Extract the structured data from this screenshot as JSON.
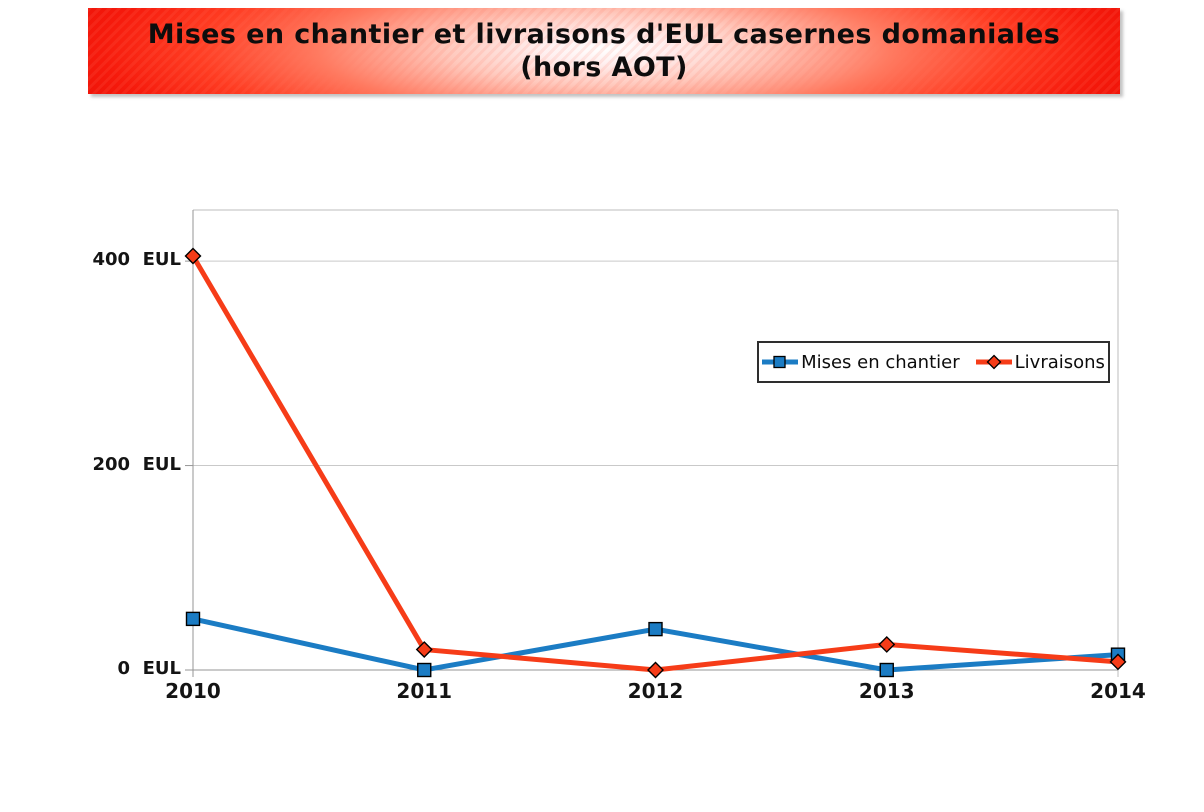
{
  "banner": {
    "title": "Mises en chantier et livraisons d'EUL casernes domaniales",
    "subtitle": "(hors AOT)"
  },
  "colors": {
    "banner_red": "#ee1408",
    "series_blue": "#1b7cc4",
    "series_red": "#f63c18",
    "gridline": "#c9c9c9",
    "axis": "#969696",
    "plot_border": "#bdbdbd",
    "tick_label": "#141414",
    "legend_border": "#2e2e2e",
    "marker_outline": "#000000"
  },
  "chart_data": {
    "type": "line",
    "title": "Mises en chantier et livraisons d'EUL casernes domaniales (hors AOT)",
    "categories": [
      "2010",
      "2011",
      "2012",
      "2013",
      "2014"
    ],
    "series": [
      {
        "name": "Mises en chantier",
        "marker": "square",
        "color": "#1b7cc4",
        "values": [
          50,
          0,
          40,
          0,
          15
        ]
      },
      {
        "name": "Livraisons",
        "marker": "diamond",
        "color": "#f63c18",
        "values": [
          405,
          20,
          0,
          25,
          8
        ]
      }
    ],
    "y_ticks": [
      {
        "value": 0,
        "label": "0  EUL"
      },
      {
        "value": 200,
        "label": "200  EUL"
      },
      {
        "value": 400,
        "label": "400  EUL"
      }
    ],
    "xlabel": "",
    "ylabel": "EUL",
    "ylim": [
      0,
      450
    ],
    "grid": "horizontal",
    "legend_position": "inside-top-right",
    "legend_labels": [
      "Mises en chantier",
      "Livraisons"
    ]
  }
}
